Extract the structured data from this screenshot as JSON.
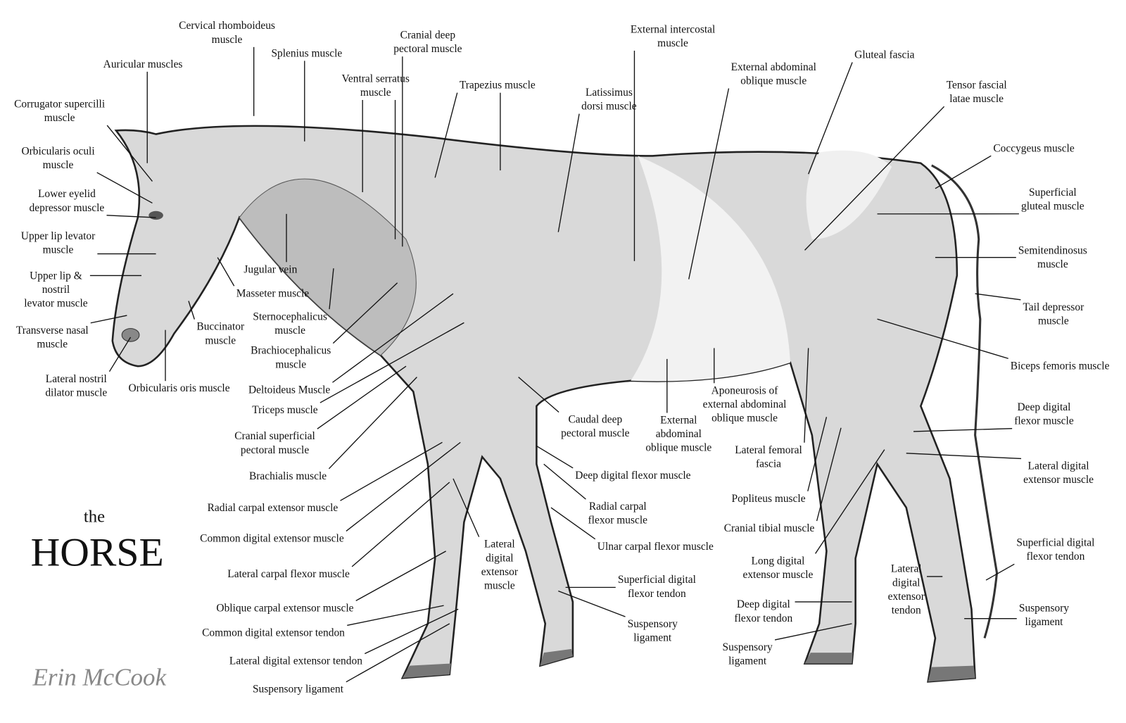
{
  "title": {
    "small": "the",
    "large": "HORSE"
  },
  "signature": "Erin McCook",
  "labels": [
    [
      "Cervical rhomboideus",
      "muscle"
    ],
    [
      "Splenius muscle"
    ],
    [
      "Cranial deep",
      "pectoral muscle"
    ],
    [
      "Ventral serratus",
      "muscle"
    ],
    [
      "Trapezius muscle"
    ],
    [
      "External intercostal",
      "muscle"
    ],
    [
      "External abdominal",
      "oblique muscle"
    ],
    [
      "Gluteal fascia"
    ],
    [
      "Tensor fascial",
      "latae muscle"
    ],
    [
      "Coccygeus muscle"
    ],
    [
      "Superficial",
      "gluteal muscle"
    ],
    [
      "Semitendinosus",
      "muscle"
    ],
    [
      "Tail depressor",
      "muscle"
    ],
    [
      "Biceps femoris muscle"
    ],
    [
      "Deep digital",
      "flexor muscle"
    ],
    [
      "Lateral digital",
      "extensor muscle"
    ],
    [
      "Superficial digital",
      "flexor tendon"
    ],
    [
      "Suspensory",
      "ligament"
    ],
    [
      "Lateral",
      "digital",
      "extensor",
      "tendon"
    ],
    [
      "Suspensory",
      "ligament"
    ],
    [
      "Deep digital",
      "flexor tendon"
    ],
    [
      "Long digital",
      "extensor muscle"
    ],
    [
      "Cranial tibial muscle"
    ],
    [
      "Popliteus muscle"
    ],
    [
      "Lateral femoral",
      "fascia"
    ],
    [
      "Aponeurosis of",
      "external abdominal",
      "oblique muscle"
    ],
    [
      "External",
      "abdominal",
      "oblique muscle"
    ],
    [
      "Latissimus",
      "dorsi muscle"
    ],
    [
      "Caudal deep",
      "pectoral muscle"
    ],
    [
      "Deep digital flexor muscle"
    ],
    [
      "Radial carpal",
      "flexor muscle"
    ],
    [
      "Ulnar carpal flexor muscle"
    ],
    [
      "Superficial digital",
      "flexor tendon"
    ],
    [
      "Suspensory",
      "ligament"
    ],
    [
      "Lateral",
      "digital",
      "extensor",
      "muscle"
    ],
    [
      "Auricular muscles"
    ],
    [
      "Corrugator supercilli",
      "muscle"
    ],
    [
      "Orbicularis oculi",
      "muscle"
    ],
    [
      "Lower eyelid",
      "depressor muscle"
    ],
    [
      "Upper lip levator",
      "muscle"
    ],
    [
      "Upper lip &",
      "nostril",
      "levator muscle"
    ],
    [
      "Transverse nasal",
      "muscle"
    ],
    [
      "Lateral nostril",
      "dilator muscle"
    ],
    [
      "Orbicularis oris muscle"
    ],
    [
      "Buccinator",
      "muscle"
    ],
    [
      "Masseter muscle"
    ],
    [
      "Jugular vein"
    ],
    [
      "Sternocephalicus",
      "muscle"
    ],
    [
      "Brachiocephalicus",
      "muscle"
    ],
    [
      "Deltoideus Muscle"
    ],
    [
      "Triceps muscle"
    ],
    [
      "Cranial superficial",
      "pectoral muscle"
    ],
    [
      "Brachialis muscle"
    ],
    [
      "Radial carpal extensor muscle"
    ],
    [
      "Common digital extensor muscle"
    ],
    [
      "Lateral carpal flexor muscle"
    ],
    [
      "Oblique carpal extensor muscle"
    ],
    [
      "Common digital extensor tendon"
    ],
    [
      "Lateral digital extensor tendon"
    ],
    [
      "Suspensory ligament"
    ]
  ]
}
